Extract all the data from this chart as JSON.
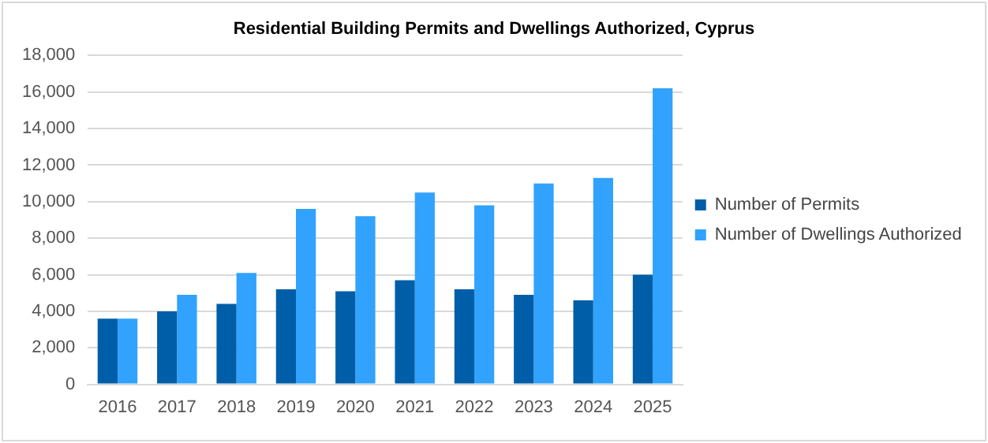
{
  "chart_data": {
    "type": "bar",
    "title": "Residential Building Permits and Dwellings Authorized, Cyprus",
    "categories": [
      "2016",
      "2017",
      "2018",
      "2019",
      "2020",
      "2021",
      "2022",
      "2023",
      "2024",
      "2025"
    ],
    "series": [
      {
        "name": "Number of Permits",
        "color": "#005ea8",
        "values": [
          3600,
          4000,
          4400,
          5200,
          5100,
          5700,
          5200,
          4900,
          4600,
          6000
        ]
      },
      {
        "name": "Number of Dwellings Authorized",
        "color": "#31a2fd",
        "values": [
          3600,
          4900,
          6100,
          9600,
          9200,
          10500,
          9800,
          11000,
          11300,
          16200
        ]
      }
    ],
    "ylim": [
      0,
      18000
    ],
    "yticks": [
      0,
      {
        "value": 2000,
        "label": "2,000"
      },
      {
        "value": 4000,
        "label": "4,000"
      },
      {
        "value": 6000,
        "label": "6,000"
      },
      {
        "value": 8000,
        "label": "8,000"
      },
      {
        "value": 10000,
        "label": "10,000"
      },
      {
        "value": 12000,
        "label": "12,000"
      },
      {
        "value": 14000,
        "label": "14,000"
      },
      {
        "value": 16000,
        "label": "16,000"
      },
      {
        "value": 18000,
        "label": "18,000"
      }
    ],
    "grid": "y",
    "legend": "right"
  }
}
